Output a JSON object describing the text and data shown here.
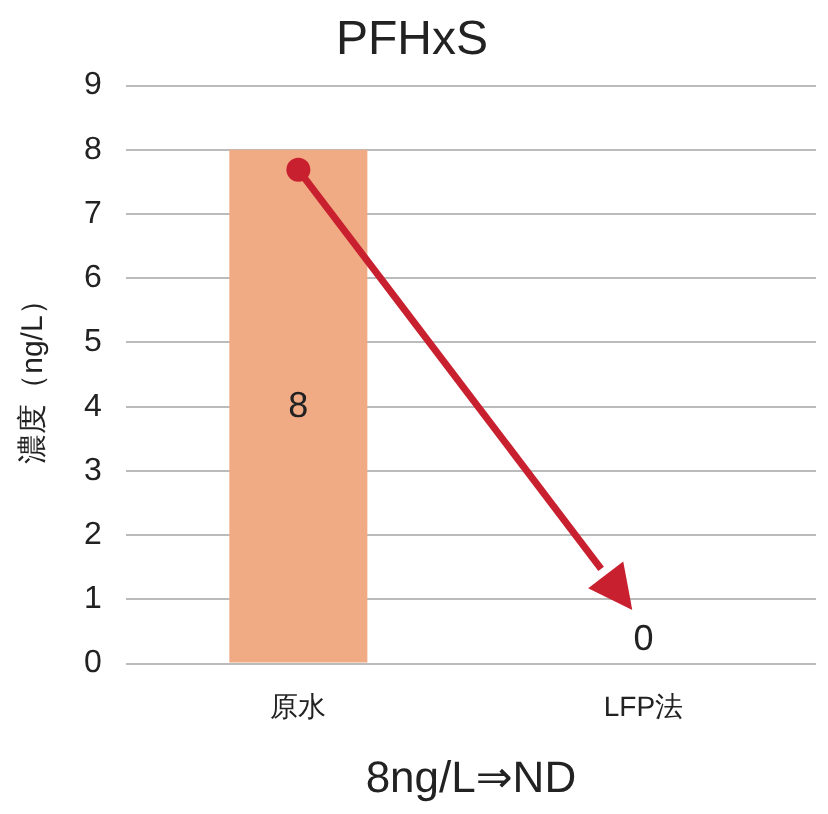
{
  "chart_data": {
    "type": "bar",
    "title": "PFHxS",
    "xlabel": "8ng/L⇒ND",
    "ylabel": "濃度（ng/L）",
    "categories": [
      "原水",
      "LFP法"
    ],
    "values": [
      8,
      0
    ],
    "color": "#f0aa84",
    "ylim": [
      0,
      9
    ],
    "yticks": [
      0,
      1,
      2,
      3,
      4,
      5,
      6,
      7,
      8,
      9
    ],
    "grid": "y",
    "data_labels": true
  }
}
